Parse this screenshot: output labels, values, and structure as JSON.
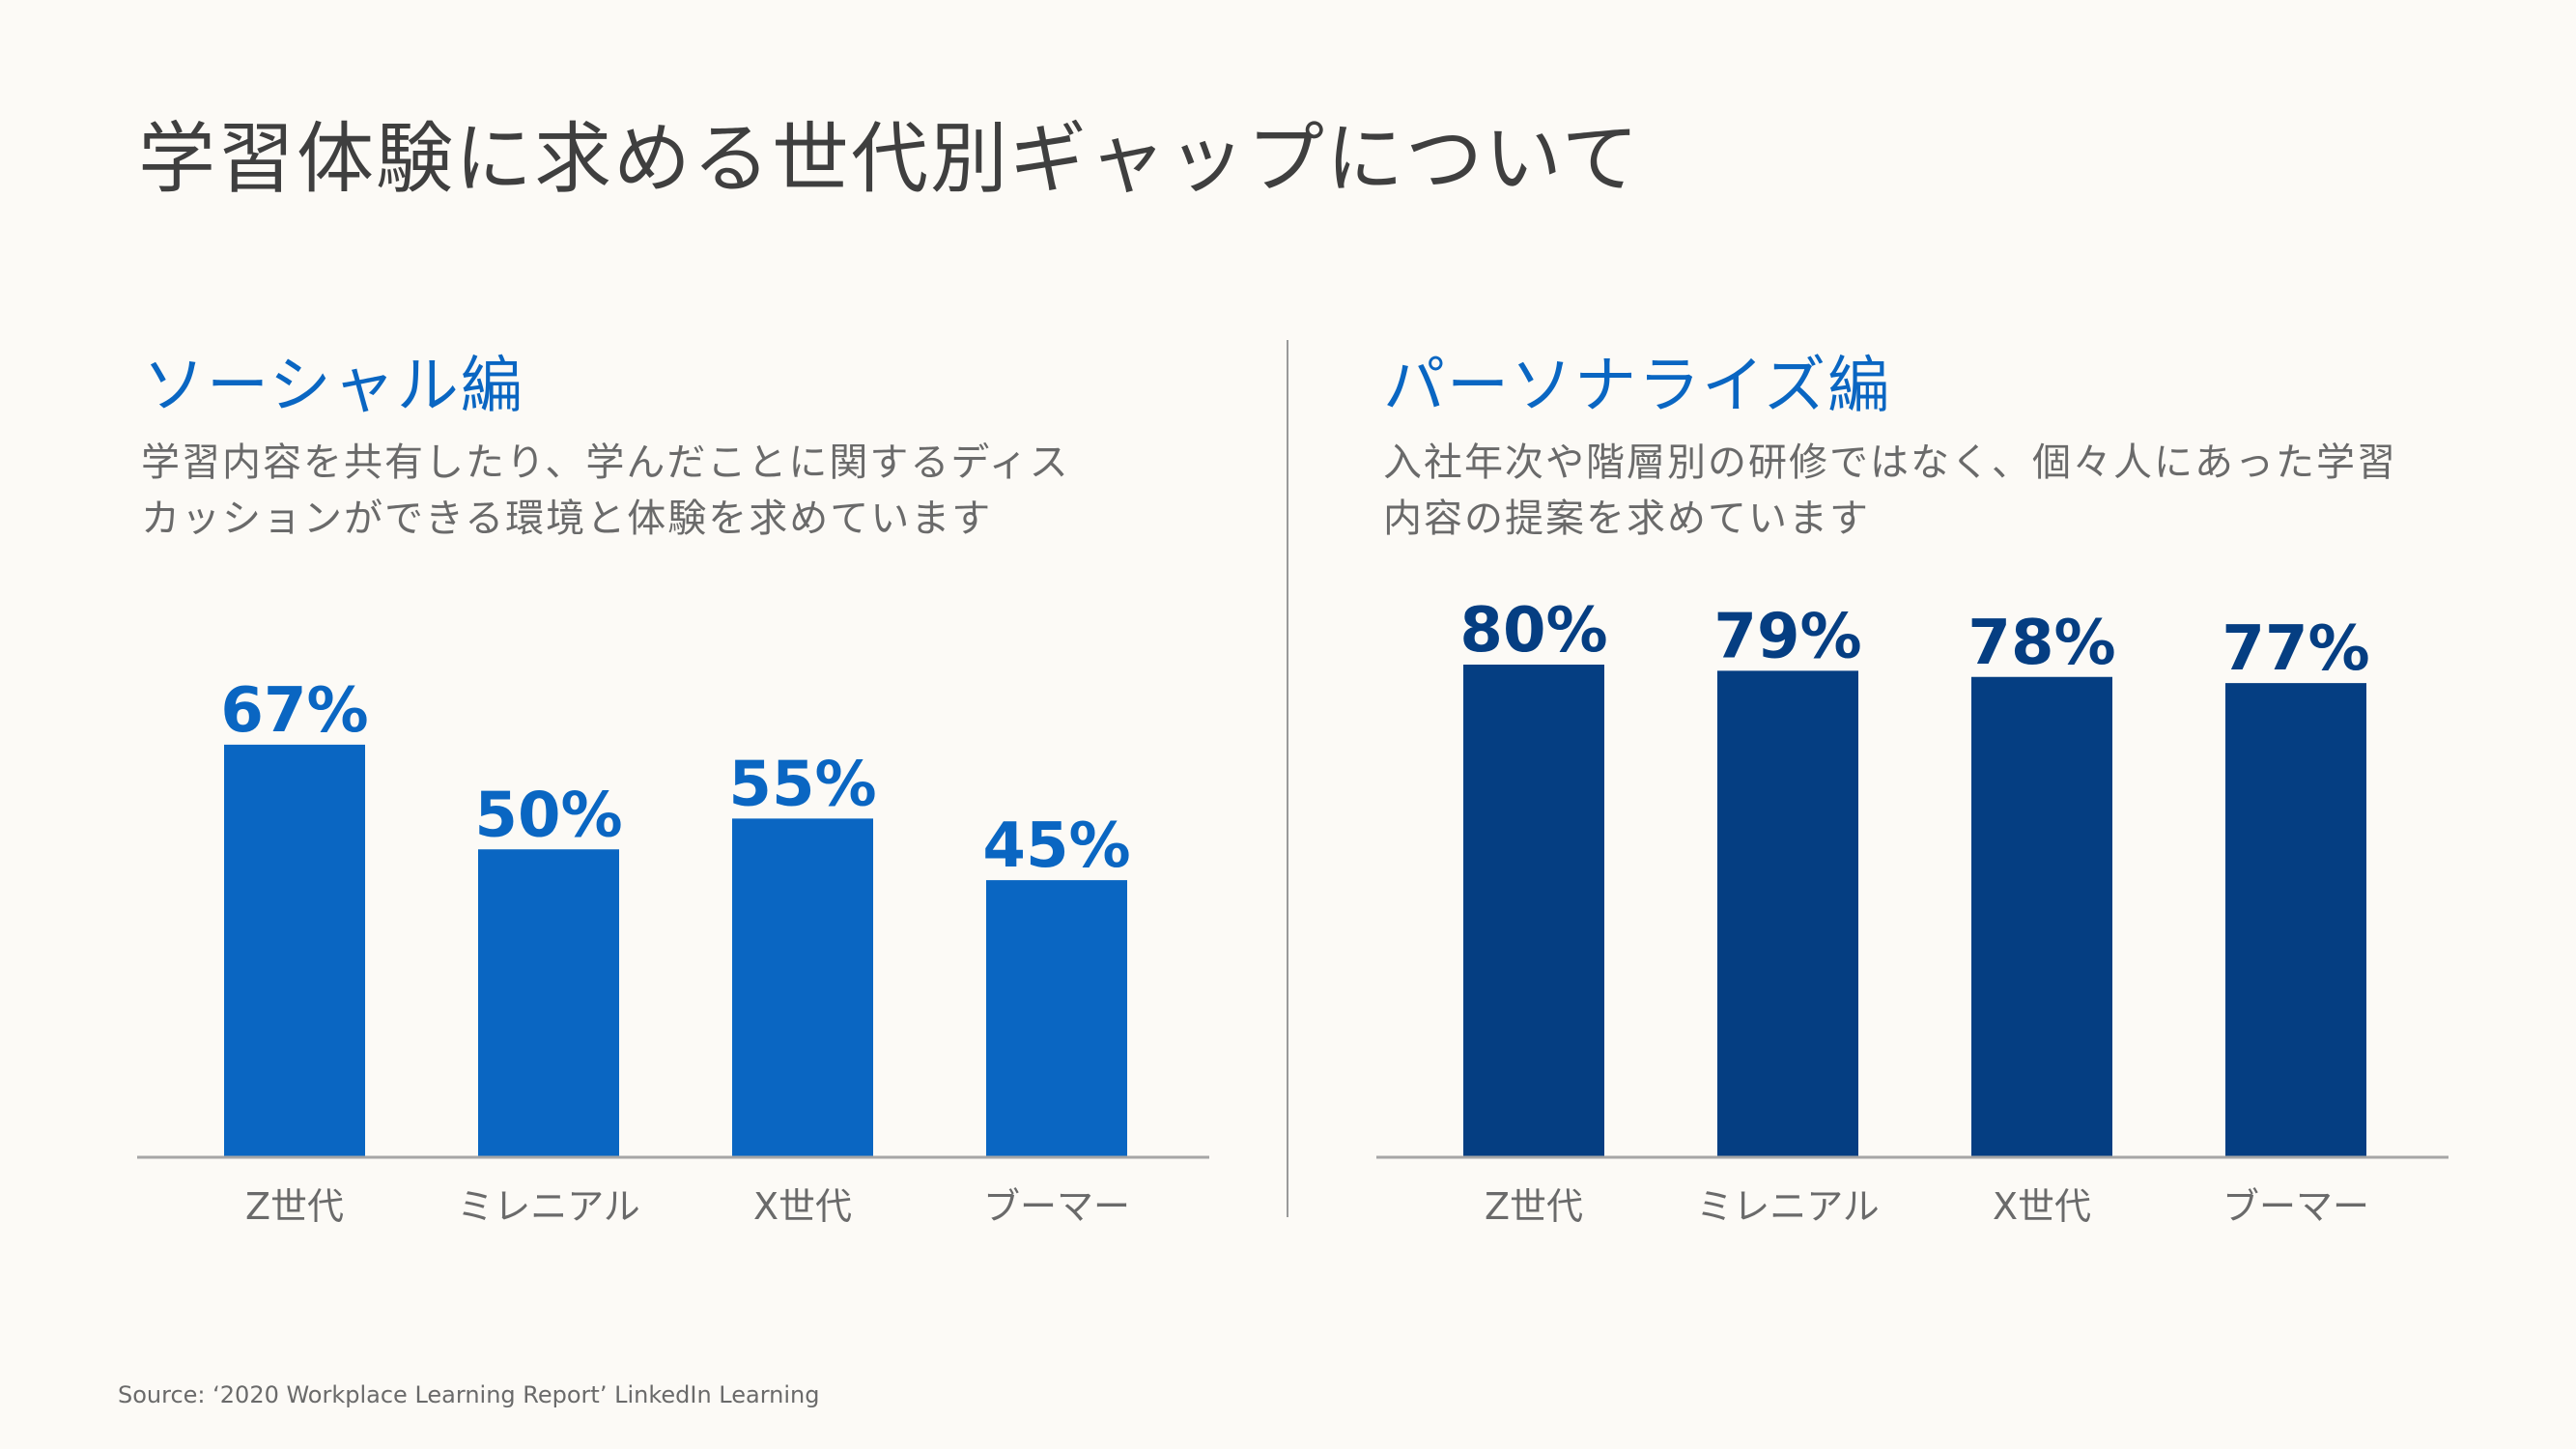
{
  "slide": {
    "title": "学習体験に求める世代別ギャップについて",
    "source": "Source: ‘2020 Workplace Learning Report’ LinkedIn Learning"
  },
  "left": {
    "heading": "ソーシャル編",
    "description": [
      "学習内容を共有したり、学んだことに関するディス",
      "カッションができる環境と体験を求めています"
    ]
  },
  "right": {
    "heading": "パーソナライズ編",
    "description": [
      "入社年次や階層別の研修ではなく、個々人にあった学習",
      "内容の提案を求めています"
    ]
  },
  "colors": {
    "social": "#0a66c2",
    "personal": "#053e82"
  },
  "chart_data": [
    {
      "type": "bar",
      "categories": [
        "Z世代",
        "ミレニアル",
        "X世代",
        "ブーマー"
      ],
      "values": [
        67,
        50,
        55,
        45
      ],
      "value_labels": [
        "67%",
        "50%",
        "55%",
        "45%"
      ],
      "ylim": [
        0,
        80
      ],
      "grid": false
    },
    {
      "type": "bar",
      "categories": [
        "Z世代",
        "ミレニアル",
        "X世代",
        "ブーマー"
      ],
      "values": [
        80,
        79,
        78,
        77
      ],
      "value_labels": [
        "80%",
        "79%",
        "78%",
        "77%"
      ],
      "ylim": [
        0,
        80
      ],
      "grid": false
    }
  ]
}
